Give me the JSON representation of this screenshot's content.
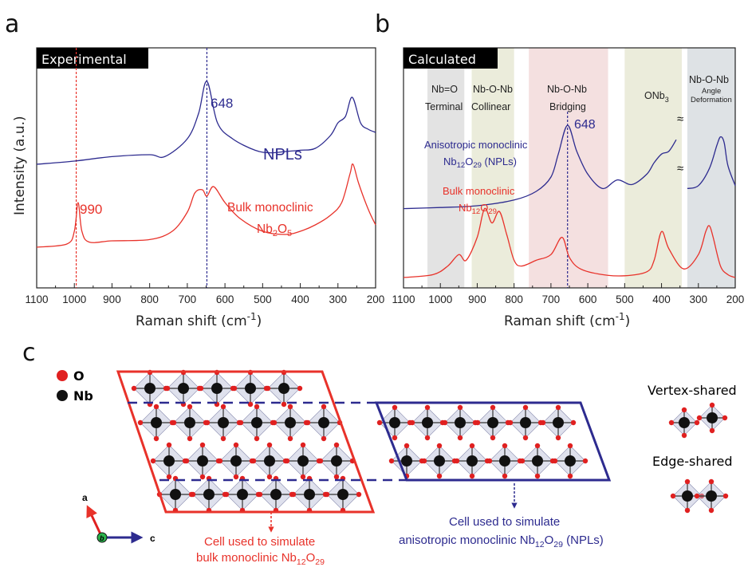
{
  "panels": {
    "a": "a",
    "b": "b",
    "c": "c"
  },
  "colors": {
    "npl": "#2d2b8f",
    "bulk": "#e8322a",
    "shade_gray": "#d9d9d9",
    "shade_olive": "#e4e6cf",
    "shade_pink": "#f0d6d6",
    "shade_slate": "#d3d8dc"
  },
  "panel_a": {
    "tag": "Experimental",
    "ylabel": "Intensity (a.u.)",
    "xlabel_main": "Raman shift (cm",
    "xlabel_sup": "-1",
    "xlabel_close": ")",
    "xticks": [
      "1100",
      "1000",
      "900",
      "800",
      "700",
      "600",
      "500",
      "400",
      "300",
      "200"
    ],
    "peak_npl": "648",
    "peak_bulk": "990",
    "npl_label": "NPLs",
    "bulk_label_1": "Bulk monoclinic",
    "bulk_label_2": "Nb",
    "bulk_label_2_sub": "2",
    "bulk_label_2b": "O",
    "bulk_label_2_sub2": "5"
  },
  "panel_b": {
    "tag": "Calculated",
    "xlabel_main": "Raman shift (cm",
    "xlabel_sup": "-1",
    "xlabel_close": ")",
    "xticks": [
      "1100",
      "1000",
      "900",
      "800",
      "700",
      "600",
      "500",
      "400",
      "300",
      "200"
    ],
    "peak": "648",
    "regions": [
      {
        "l1": "Nb=O",
        "l2": "Terminal"
      },
      {
        "l1": "Nb-O-Nb",
        "l2": "Collinear"
      },
      {
        "l1": "Nb-O-Nb",
        "l2": "Bridging"
      },
      {
        "l1": "ONb",
        "sub": "3"
      },
      {
        "l1": "Nb-O-Nb",
        "l2": "Angle",
        "l3": "Deformation"
      }
    ],
    "npl_label_1": "Anisotropic monoclinic",
    "npl_label_2": "Nb",
    "npl_label_2_sub": "12",
    "npl_label_2b": "O",
    "npl_label_2_sub2": "29",
    "npl_label_2c": " (NPLs)",
    "bulk_label_1": "Bulk monoclinic",
    "bulk_label_2": "Nb",
    "bulk_label_2_sub": "12",
    "bulk_label_2b": "O",
    "bulk_label_2_sub2": "29"
  },
  "panel_c": {
    "legend_o": "O",
    "legend_nb": "Nb",
    "vertex": "Vertex-shared",
    "edge": "Edge-shared",
    "axis_a": "a",
    "axis_b": "b",
    "axis_c": "c",
    "bulk_caption_1": "Cell used to simulate",
    "bulk_caption_2": "bulk monoclinic Nb",
    "bulk_caption_2_sub": "12",
    "bulk_caption_2b": "O",
    "bulk_caption_2_sub2": "29",
    "npl_caption_1": "Cell used to simulate",
    "npl_caption_2": "anisotropic monoclinic Nb",
    "npl_caption_2_sub": "12",
    "npl_caption_2b": "O",
    "npl_caption_2_sub2": "29",
    "npl_caption_2c": " (NPLs)"
  },
  "chart_data": [
    {
      "type": "line",
      "title": "Experimental",
      "xlabel": "Raman shift (cm-1)",
      "ylabel": "Intensity (a.u.)",
      "xlim": [
        1100,
        200
      ],
      "series": [
        {
          "name": "NPLs",
          "x": [
            1100,
            1000,
            900,
            800,
            760,
            700,
            670,
            648,
            620,
            580,
            520,
            480,
            440,
            400,
            360,
            320,
            300,
            280,
            262,
            240,
            220,
            200
          ],
          "y": [
            1.4,
            1.45,
            1.52,
            1.55,
            1.52,
            1.8,
            2.2,
            2.7,
            2.05,
            1.8,
            1.62,
            1.58,
            1.6,
            1.62,
            1.65,
            1.85,
            2.05,
            2.15,
            2.45,
            2.05,
            1.95,
            1.9
          ]
        },
        {
          "name": "Bulk monoclinic Nb2O5",
          "x": [
            1100,
            1020,
            1000,
            990,
            980,
            960,
            900,
            800,
            740,
            700,
            680,
            660,
            648,
            630,
            600,
            560,
            500,
            440,
            400,
            360,
            320,
            290,
            268,
            260,
            245,
            220,
            200
          ],
          "y": [
            0.1,
            0.15,
            0.35,
            0.8,
            0.35,
            0.18,
            0.2,
            0.22,
            0.35,
            0.65,
            0.95,
            1.0,
            0.9,
            1.05,
            0.8,
            0.55,
            0.35,
            0.3,
            0.35,
            0.45,
            0.6,
            0.8,
            1.25,
            1.4,
            1.1,
            0.7,
            0.45
          ]
        }
      ],
      "annotations": [
        "648",
        "990"
      ]
    },
    {
      "type": "line",
      "title": "Calculated",
      "xlabel": "Raman shift (cm-1)",
      "xlim": [
        1100,
        200
      ],
      "series": [
        {
          "name": "Anisotropic monoclinic Nb12O29 (NPLs)",
          "x": [
            1100,
            1000,
            900,
            800,
            740,
            700,
            680,
            655,
            630,
            600,
            560,
            520,
            480,
            440,
            420,
            400,
            380,
            360,
            330,
            300,
            270,
            250,
            240,
            230,
            220,
            200
          ],
          "y": [
            1.2,
            1.22,
            1.25,
            1.35,
            1.5,
            1.75,
            2.15,
            2.65,
            2.2,
            1.8,
            1.55,
            1.7,
            1.62,
            1.8,
            2.0,
            2.15,
            2.2,
            2.4,
            1.55,
            1.6,
            1.9,
            2.3,
            2.45,
            2.35,
            1.95,
            1.6
          ]
        },
        {
          "name": "Bulk monoclinic Nb12O29",
          "x": [
            1100,
            1020,
            980,
            950,
            930,
            900,
            880,
            860,
            840,
            820,
            800,
            780,
            740,
            700,
            670,
            650,
            620,
            560,
            500,
            440,
            420,
            400,
            380,
            340,
            300,
            280,
            270,
            260,
            240,
            220,
            200
          ],
          "y": [
            0.0,
            0.05,
            0.2,
            0.4,
            0.3,
            0.7,
            1.2,
            0.95,
            1.15,
            0.75,
            0.3,
            0.2,
            0.3,
            0.4,
            0.7,
            0.35,
            0.15,
            0.05,
            0.03,
            0.1,
            0.3,
            0.8,
            0.5,
            0.15,
            0.4,
            0.8,
            0.9,
            0.7,
            0.2,
            0.05,
            0.0
          ]
        }
      ],
      "annotations": [
        "648"
      ]
    }
  ]
}
